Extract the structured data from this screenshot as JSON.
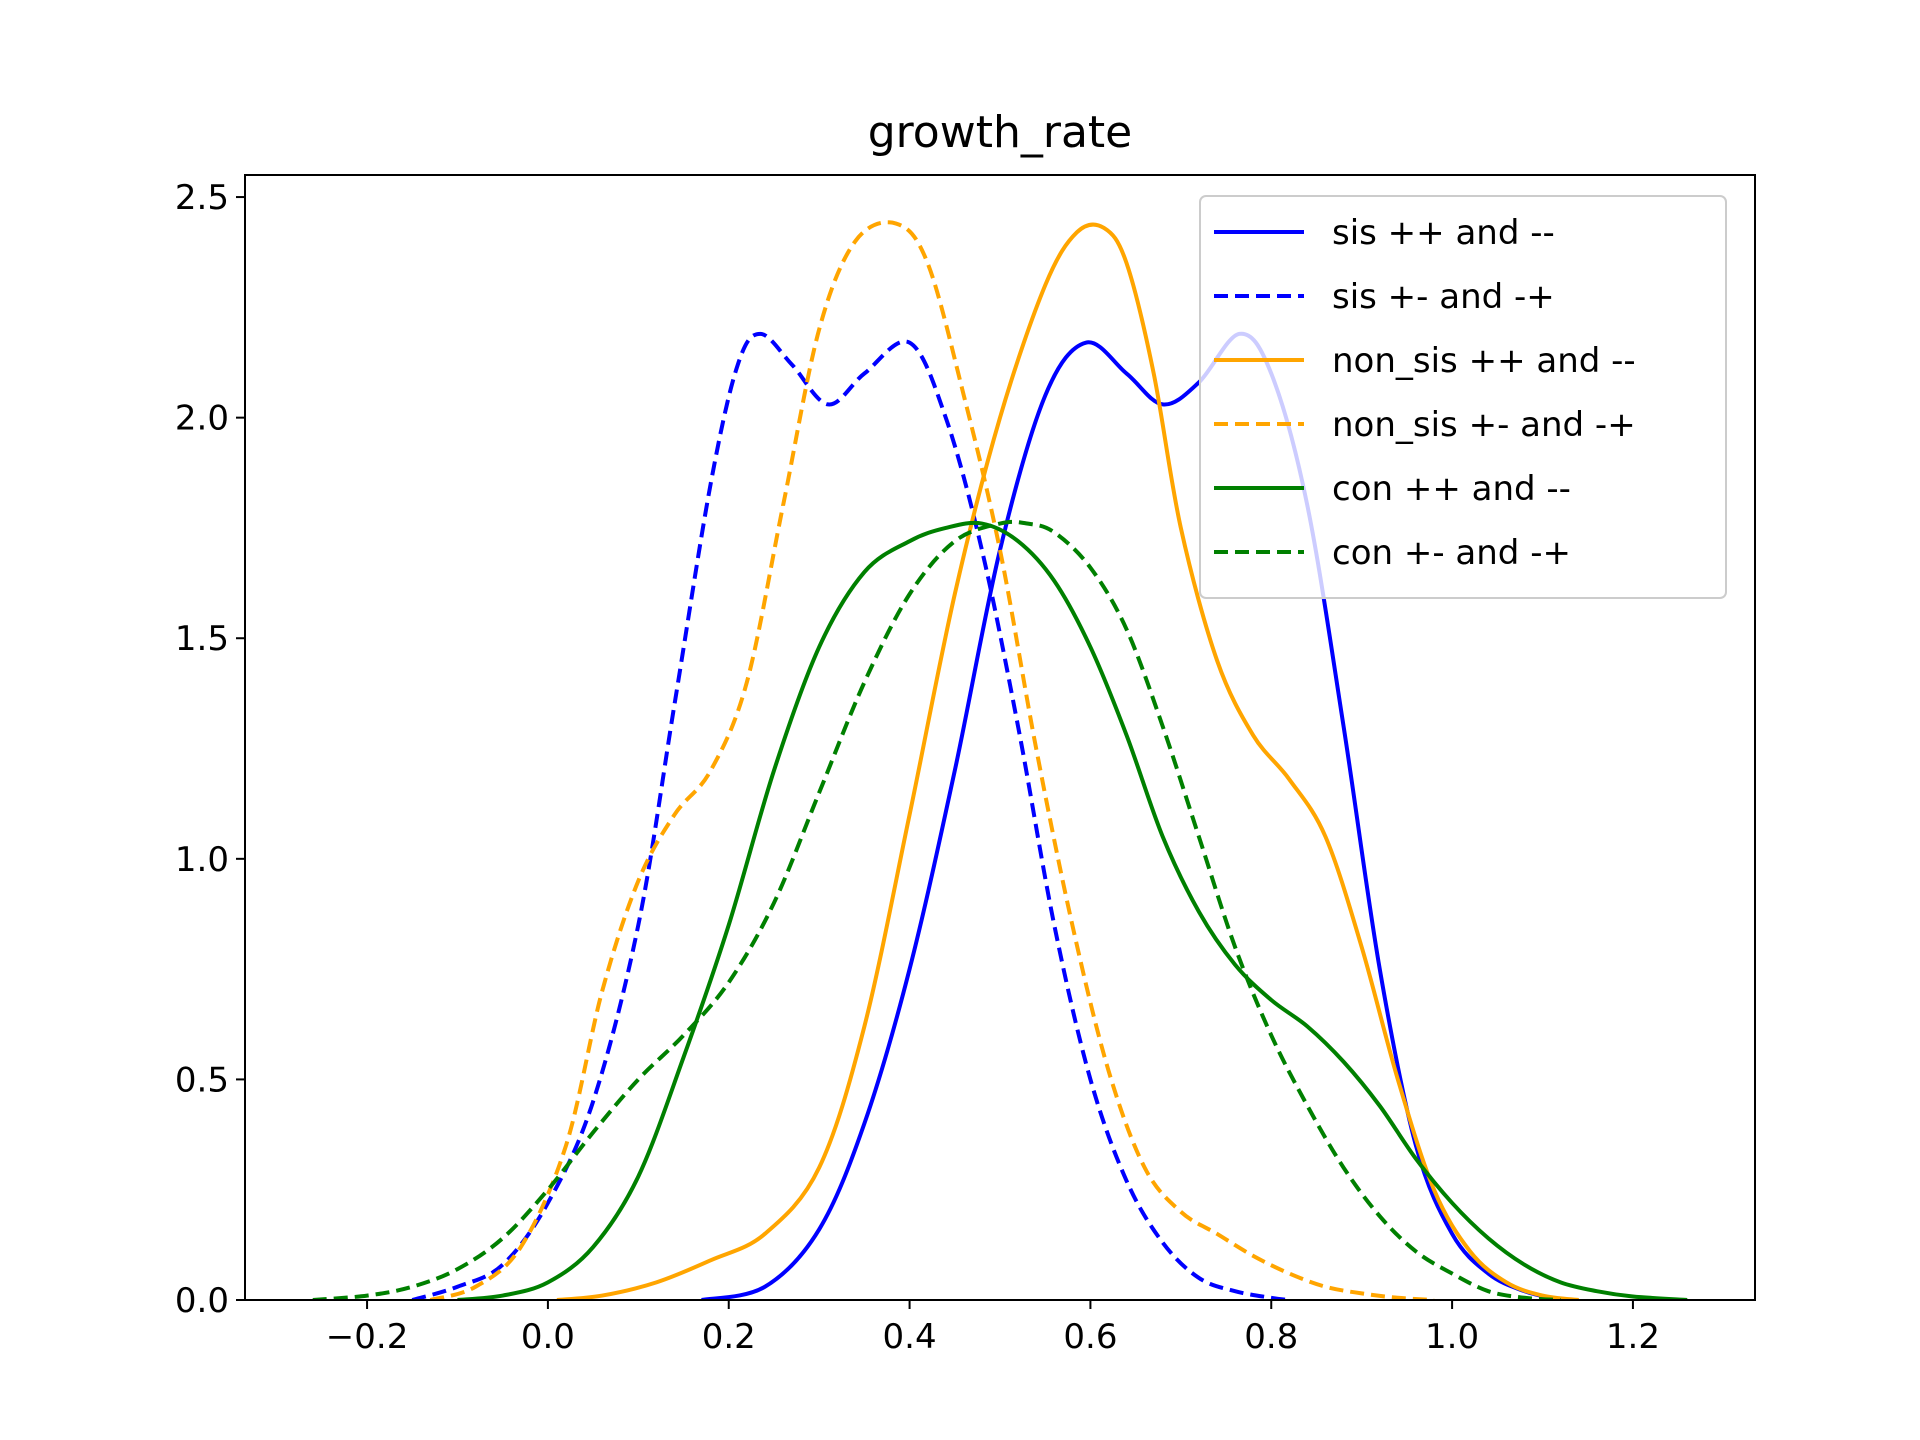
{
  "chart_data": {
    "type": "line",
    "title": "growth_rate",
    "xlabel": "",
    "ylabel": "",
    "xlim": [
      -0.335,
      1.335
    ],
    "ylim": [
      0,
      2.55
    ],
    "xticks": [
      -0.2,
      0.0,
      0.2,
      0.4,
      0.6,
      0.8,
      1.0,
      1.2
    ],
    "xtick_labels": [
      "−0.2",
      "0.0",
      "0.2",
      "0.4",
      "0.6",
      "0.8",
      "1.0",
      "1.2"
    ],
    "yticks": [
      0.0,
      0.5,
      1.0,
      1.5,
      2.0,
      2.5
    ],
    "ytick_labels": [
      "0.0",
      "0.5",
      "1.0",
      "1.5",
      "2.0",
      "2.5"
    ],
    "grid": false,
    "legend": {
      "position": "top-right"
    },
    "series": [
      {
        "name": "sis ++ and --",
        "color": "#0000ff",
        "dash": "solid",
        "x": [
          0.17,
          0.24,
          0.3,
          0.35,
          0.4,
          0.45,
          0.5,
          0.55,
          0.595,
          0.64,
          0.68,
          0.72,
          0.765,
          0.8,
          0.84,
          0.88,
          0.92,
          0.96,
          1.0,
          1.04,
          1.08,
          1.12
        ],
        "y": [
          0.0,
          0.03,
          0.16,
          0.4,
          0.75,
          1.2,
          1.7,
          2.05,
          2.17,
          2.1,
          2.03,
          2.08,
          2.19,
          2.1,
          1.8,
          1.3,
          0.75,
          0.35,
          0.15,
          0.06,
          0.02,
          0.0
        ]
      },
      {
        "name": "sis +- and -+",
        "color": "#0000ff",
        "dash": "dashed",
        "x": [
          -0.15,
          -0.1,
          -0.05,
          0.0,
          0.05,
          0.1,
          0.14,
          0.18,
          0.21,
          0.235,
          0.27,
          0.31,
          0.35,
          0.4,
          0.44,
          0.48,
          0.52,
          0.56,
          0.6,
          0.64,
          0.68,
          0.72,
          0.76,
          0.8,
          0.82
        ],
        "y": [
          0.0,
          0.03,
          0.08,
          0.22,
          0.45,
          0.85,
          1.35,
          1.85,
          2.12,
          2.19,
          2.12,
          2.03,
          2.1,
          2.17,
          2.0,
          1.7,
          1.3,
          0.85,
          0.5,
          0.27,
          0.13,
          0.05,
          0.02,
          0.005,
          0.0
        ]
      },
      {
        "name": "non_sis ++ and --",
        "color": "#ffa500",
        "dash": "solid",
        "x": [
          0.01,
          0.06,
          0.12,
          0.18,
          0.24,
          0.3,
          0.35,
          0.4,
          0.45,
          0.5,
          0.55,
          0.585,
          0.615,
          0.64,
          0.67,
          0.7,
          0.74,
          0.78,
          0.82,
          0.86,
          0.9,
          0.94,
          0.98,
          1.02,
          1.06,
          1.1,
          1.14
        ],
        "y": [
          0.0,
          0.01,
          0.04,
          0.09,
          0.15,
          0.3,
          0.62,
          1.1,
          1.6,
          2.0,
          2.3,
          2.42,
          2.43,
          2.35,
          2.1,
          1.75,
          1.45,
          1.28,
          1.18,
          1.05,
          0.8,
          0.5,
          0.25,
          0.11,
          0.04,
          0.01,
          0.0
        ]
      },
      {
        "name": "non_sis +- and -+",
        "color": "#ffa500",
        "dash": "dashed",
        "x": [
          -0.13,
          -0.08,
          -0.03,
          0.02,
          0.06,
          0.1,
          0.14,
          0.18,
          0.22,
          0.26,
          0.3,
          0.34,
          0.385,
          0.42,
          0.46,
          0.5,
          0.54,
          0.58,
          0.62,
          0.66,
          0.7,
          0.74,
          0.78,
          0.82,
          0.86,
          0.9,
          0.94,
          0.98
        ],
        "y": [
          0.0,
          0.03,
          0.12,
          0.35,
          0.7,
          0.95,
          1.1,
          1.2,
          1.4,
          1.8,
          2.2,
          2.4,
          2.44,
          2.35,
          2.05,
          1.7,
          1.25,
          0.85,
          0.52,
          0.3,
          0.2,
          0.15,
          0.1,
          0.06,
          0.03,
          0.015,
          0.005,
          0.0
        ]
      },
      {
        "name": "con ++ and --",
        "color": "#008000",
        "dash": "solid",
        "x": [
          -0.1,
          -0.05,
          0.0,
          0.05,
          0.1,
          0.15,
          0.2,
          0.25,
          0.3,
          0.35,
          0.4,
          0.44,
          0.48,
          0.52,
          0.56,
          0.6,
          0.64,
          0.68,
          0.72,
          0.76,
          0.8,
          0.84,
          0.88,
          0.92,
          0.96,
          1.0,
          1.04,
          1.08,
          1.12,
          1.16,
          1.2,
          1.26
        ],
        "y": [
          0.0,
          0.01,
          0.04,
          0.12,
          0.28,
          0.55,
          0.85,
          1.2,
          1.48,
          1.65,
          1.72,
          1.75,
          1.76,
          1.72,
          1.63,
          1.48,
          1.28,
          1.05,
          0.88,
          0.76,
          0.68,
          0.62,
          0.54,
          0.44,
          0.32,
          0.22,
          0.14,
          0.08,
          0.04,
          0.02,
          0.008,
          0.0
        ]
      },
      {
        "name": "con +- and -+",
        "color": "#008000",
        "dash": "dashed",
        "x": [
          -0.26,
          -0.2,
          -0.15,
          -0.1,
          -0.05,
          0.0,
          0.05,
          0.1,
          0.15,
          0.2,
          0.25,
          0.3,
          0.35,
          0.4,
          0.45,
          0.5,
          0.53,
          0.56,
          0.6,
          0.64,
          0.68,
          0.72,
          0.76,
          0.8,
          0.84,
          0.88,
          0.92,
          0.96,
          1.0,
          1.04,
          1.08,
          1.12
        ],
        "y": [
          0.0,
          0.01,
          0.03,
          0.07,
          0.14,
          0.25,
          0.38,
          0.5,
          0.6,
          0.72,
          0.9,
          1.15,
          1.4,
          1.6,
          1.72,
          1.76,
          1.76,
          1.74,
          1.66,
          1.52,
          1.3,
          1.05,
          0.8,
          0.6,
          0.44,
          0.3,
          0.19,
          0.11,
          0.06,
          0.02,
          0.005,
          0.0
        ]
      }
    ]
  }
}
